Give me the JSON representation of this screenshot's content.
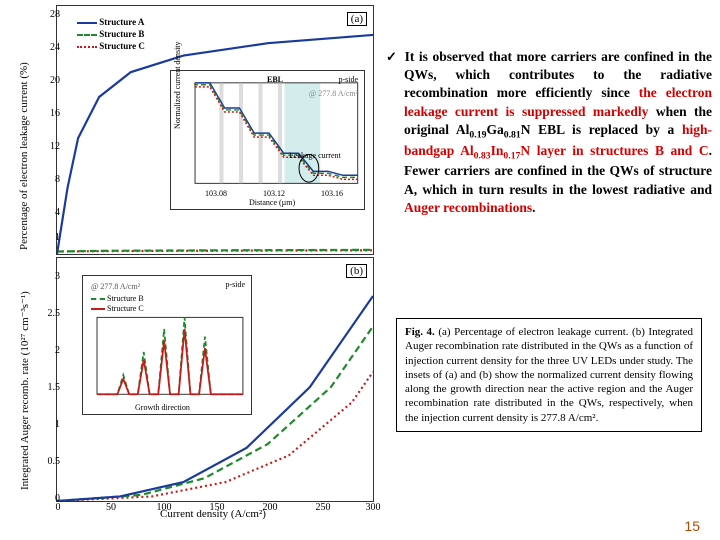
{
  "figure": {
    "common": {
      "bg": "#ffffff",
      "border": "#333333",
      "font": "Times New Roman",
      "tick_fontsize": 10,
      "axis_fontsize": 11
    },
    "colors": {
      "structureA": "#1a3a9c",
      "structureB": "#1f8a2a",
      "structureC": "#c61b1b",
      "grid": "#cccccc",
      "text": "#000000",
      "inset_shade": "#b6e0e0"
    },
    "x_axis": {
      "label": "Current density (A/cm²)",
      "min": 0,
      "max": 300,
      "ticks": [
        0,
        50,
        100,
        150,
        200,
        250,
        300
      ]
    },
    "panel_a": {
      "label": "(a)",
      "y_label": "Percentage of electron leakage current (%)",
      "y_min": 0,
      "y_max": 30,
      "y_ticks": [
        1,
        4,
        8,
        12,
        16,
        20,
        24,
        28
      ],
      "legend": [
        "Structure A",
        "Structure B",
        "Structure C"
      ],
      "series": {
        "A": [
          [
            0,
            0
          ],
          [
            10,
            8
          ],
          [
            20,
            14
          ],
          [
            40,
            19
          ],
          [
            70,
            22
          ],
          [
            120,
            24
          ],
          [
            200,
            25.5
          ],
          [
            300,
            26.5
          ]
        ],
        "B": [
          [
            0,
            0.3
          ],
          [
            50,
            0.4
          ],
          [
            150,
            0.45
          ],
          [
            300,
            0.5
          ]
        ],
        "C": [
          [
            0,
            0.3
          ],
          [
            50,
            0.35
          ],
          [
            150,
            0.4
          ],
          [
            300,
            0.45
          ]
        ]
      },
      "style": {
        "A": {
          "dash": "",
          "width": 2.2
        },
        "B": {
          "dash": "7,4",
          "width": 2.2
        },
        "C": {
          "dash": "2,3",
          "width": 2.2
        }
      },
      "inset": {
        "title": "Normalized current density",
        "x_label": "Distance (µm)",
        "x_ticks": [
          "103.08",
          "103.12",
          "103.16"
        ],
        "annotations": [
          "EBL",
          "p-side",
          "@ 277.8 A/cm²",
          "Leakage current"
        ],
        "steps": [
          1.0,
          1.0,
          0.75,
          0.75,
          0.5,
          0.5,
          0.3,
          0.3,
          0.12,
          0.12,
          0.08,
          0.08
        ]
      }
    },
    "panel_b": {
      "label": "(b)",
      "y_label": "Integrated Auger recomb. rate (10²⁷ cm⁻³s⁻¹)",
      "y_min": 0,
      "y_max": 3.2,
      "y_ticks": [
        0,
        0.5,
        1,
        1.5,
        2,
        2.5,
        3
      ],
      "series": {
        "A": [
          [
            0,
            0
          ],
          [
            60,
            0.06
          ],
          [
            120,
            0.25
          ],
          [
            180,
            0.7
          ],
          [
            240,
            1.5
          ],
          [
            300,
            2.7
          ]
        ],
        "B": [
          [
            0,
            0
          ],
          [
            80,
            0.08
          ],
          [
            140,
            0.3
          ],
          [
            200,
            0.75
          ],
          [
            260,
            1.5
          ],
          [
            300,
            2.3
          ]
        ],
        "C": [
          [
            0,
            0
          ],
          [
            90,
            0.06
          ],
          [
            160,
            0.25
          ],
          [
            220,
            0.6
          ],
          [
            280,
            1.3
          ],
          [
            300,
            1.7
          ]
        ]
      },
      "style": {
        "A": {
          "dash": "",
          "width": 2.2
        },
        "B": {
          "dash": "7,4",
          "width": 2.2
        },
        "C": {
          "dash": "2,3",
          "width": 2.2
        }
      },
      "inset": {
        "title": "@ 277.8 A/cm²",
        "legend": [
          "Structure B",
          "Structure C"
        ],
        "annotation": "p-side",
        "x_label": "Growth direction",
        "peaks_B": [
          [
            0.18,
            0.25
          ],
          [
            0.32,
            0.55
          ],
          [
            0.46,
            0.85
          ],
          [
            0.6,
            1.0
          ],
          [
            0.74,
            0.75
          ]
        ],
        "peaks_C": [
          [
            0.18,
            0.2
          ],
          [
            0.32,
            0.45
          ],
          [
            0.46,
            0.7
          ],
          [
            0.6,
            0.85
          ],
          [
            0.74,
            0.6
          ]
        ]
      }
    }
  },
  "paragraph": {
    "check": "✓",
    "t1": "It is observed that more carriers are confined in the QWs, which contributes to the radiative recombination more efficiently since ",
    "r1": "the electron leakage current is suppressed markedly",
    "t2": " when the original Al",
    "s1": "0.19",
    "t2b": "Ga",
    "s2": "0.81",
    "t2c": "N EBL is replaced by a ",
    "r2": "high-bandgap Al",
    "s3": "0.83",
    "r2b": "In",
    "s4": "0.17",
    "r2c": "N layer in structures B and C",
    "t3": ". Fewer carriers are confined in the QWs of structure A, which in turn results in the lowest radiative and ",
    "r3": "Auger recombinations",
    "t4": "."
  },
  "caption": {
    "lead": "Fig. 4.",
    "body": "(a) Percentage of electron leakage current. (b) Integrated Auger recombination rate distributed in the QWs as a function of injection current density for the three UV LEDs under study. The insets of (a) and (b) show the normalized current density flowing along the growth direction near the active region and the Auger recombination rate distributed in the QWs, respectively, when the injection current density is 277.8 A/cm²."
  },
  "page_number": "15"
}
